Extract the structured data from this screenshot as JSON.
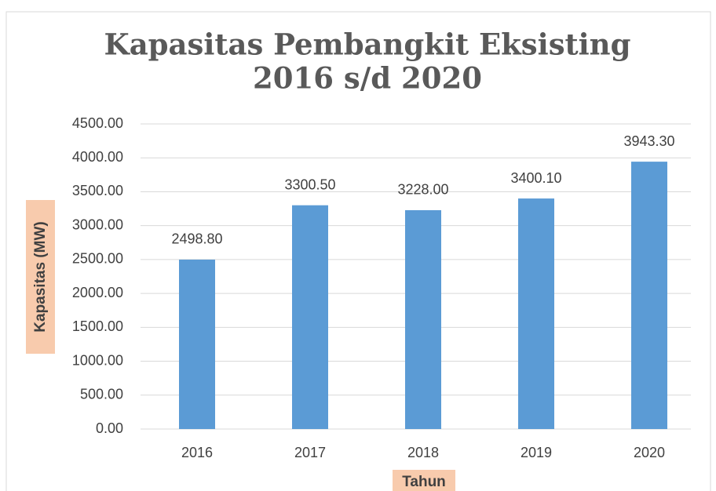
{
  "chart_data": {
    "type": "bar",
    "title": [
      "Kapasitas Pembangkit Eksisting",
      "2016 s/d 2020"
    ],
    "x_label": "Tahun",
    "y_label": "Kapasitas  (MW)",
    "categories": [
      "2016",
      "2017",
      "2018",
      "2019",
      "2020"
    ],
    "values": [
      2498.8,
      3300.5,
      3228,
      3400.1,
      3943.3
    ],
    "value_labels": [
      "2498.80",
      "3300.50",
      "3228.00",
      "3400.10",
      "3943.30"
    ],
    "color": "#5b9bd5",
    "ylim": [
      0,
      4500
    ],
    "yticks": [
      {
        "value": 0,
        "label": "0.00"
      },
      {
        "value": 500,
        "label": "500.00"
      },
      {
        "value": 1000,
        "label": "1000.00"
      },
      {
        "value": 1500,
        "label": "1500.00"
      },
      {
        "value": 2000,
        "label": "2000.00"
      },
      {
        "value": 2500,
        "label": "2500.00"
      },
      {
        "value": 3000,
        "label": "3000.00"
      },
      {
        "value": 3500,
        "label": "3500.00"
      },
      {
        "value": 4000,
        "label": "4000.00"
      },
      {
        "value": 4500,
        "label": "4500.00"
      }
    ],
    "grid": true
  }
}
